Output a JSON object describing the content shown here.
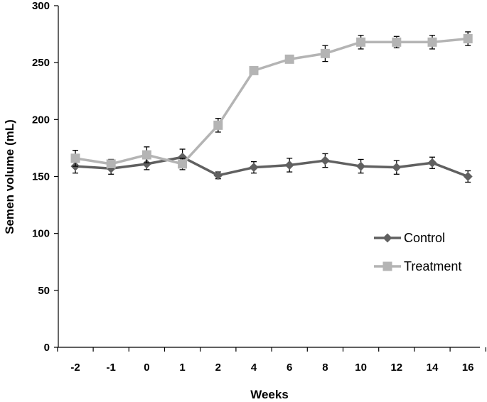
{
  "chart_data": {
    "type": "line",
    "title": "",
    "xlabel": "Weeks",
    "ylabel": "Semen volume (mL)",
    "categories": [
      "-2",
      "-1",
      "0",
      "1",
      "2",
      "4",
      "6",
      "8",
      "10",
      "12",
      "14",
      "16"
    ],
    "ylim": [
      0,
      300
    ],
    "yticks": [
      0,
      50,
      100,
      150,
      200,
      250,
      300
    ],
    "ytick_labels": [
      "0",
      "50",
      "100",
      "150",
      "200",
      "250",
      "300"
    ],
    "grid": false,
    "legend_position": "right-middle",
    "series": [
      {
        "name": "Control",
        "color": "#606060",
        "marker": "diamond",
        "values": [
          159,
          157,
          161,
          167,
          151,
          158,
          160,
          164,
          159,
          158,
          162,
          150
        ],
        "errors": [
          6,
          5,
          5,
          7,
          3,
          5,
          6,
          6,
          6,
          6,
          5,
          5
        ]
      },
      {
        "name": "Treatment",
        "color": "#b4b4b4",
        "marker": "square",
        "values": [
          166,
          161,
          169,
          161,
          195,
          243,
          253,
          258,
          268,
          268,
          268,
          271
        ],
        "errors": [
          7,
          4,
          7,
          5,
          6,
          3,
          2,
          7,
          6,
          5,
          6,
          6
        ]
      }
    ]
  }
}
